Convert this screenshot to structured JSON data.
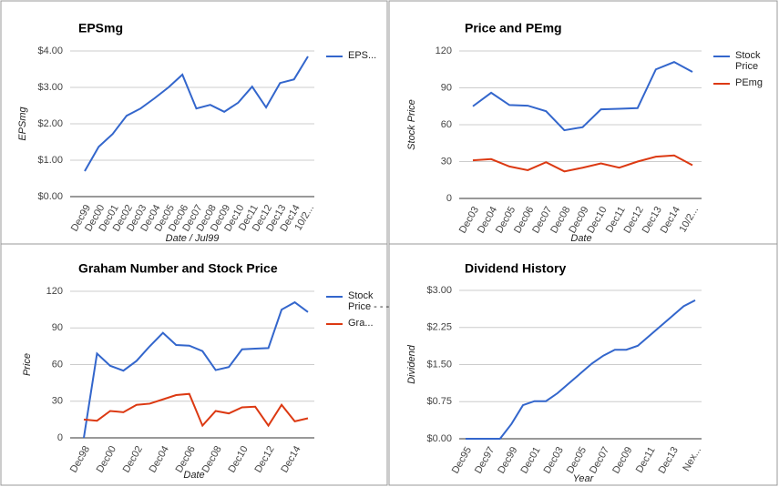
{
  "chart_data": [
    {
      "type": "line",
      "title": "EPSmg",
      "x_label": "Date / Jul99",
      "y_label": "EPSmg",
      "legend": "right",
      "grid": true,
      "categories": [
        "Dec99",
        "Dec00",
        "Dec01",
        "Dec02",
        "Dec03",
        "Dec04",
        "Dec05",
        "Dec06",
        "Dec07",
        "Dec08",
        "Dec09",
        "Dec10",
        "Dec11",
        "Dec12",
        "Dec13",
        "Dec14",
        "10/2..."
      ],
      "series": [
        {
          "name": "EPS...",
          "color": "#3366cc",
          "values": [
            0.7,
            1.37,
            1.72,
            2.22,
            2.42,
            2.7,
            3.0,
            3.35,
            2.42,
            2.52,
            2.33,
            2.58,
            3.02,
            2.45,
            3.12,
            3.22,
            3.85
          ]
        }
      ],
      "ylim": [
        0,
        4
      ],
      "yticks": [
        {
          "value": 0,
          "label": "$0.00"
        },
        {
          "value": 1,
          "label": "$1.00"
        },
        {
          "value": 2,
          "label": "$2.00"
        },
        {
          "value": 3,
          "label": "$3.00"
        },
        {
          "value": 4,
          "label": "$4.00"
        }
      ]
    },
    {
      "type": "line",
      "title": "Price and PEmg",
      "x_label": "Date",
      "y_label": "Stock Price",
      "legend": "right",
      "grid": true,
      "categories": [
        "Dec03",
        "Dec04",
        "Dec05",
        "Dec06",
        "Dec07",
        "Dec08",
        "Dec09",
        "Dec10",
        "Dec11",
        "Dec12",
        "Dec13",
        "Dec14",
        "10/2..."
      ],
      "series": [
        {
          "name": "Stock Price",
          "color": "#3366cc",
          "values": [
            75,
            86,
            76,
            75.5,
            71,
            55.5,
            58,
            72.5,
            73,
            73.5,
            105,
            111,
            103
          ]
        },
        {
          "name": "PEmg",
          "color": "#dc3912",
          "values": [
            31,
            32,
            26,
            23,
            29.5,
            22,
            25,
            28.5,
            25,
            30,
            34,
            35,
            27
          ]
        }
      ],
      "ylim": [
        0,
        120
      ],
      "yticks": [
        0,
        30,
        60,
        90,
        120
      ]
    },
    {
      "type": "line",
      "title": "Graham Number and Stock Price",
      "x_label": "Date",
      "y_label": "Price",
      "legend": "right",
      "grid": true,
      "categories": [
        "Dec98",
        null,
        "Dec00",
        null,
        "Dec02",
        null,
        "Dec04",
        null,
        "Dec06",
        null,
        "Dec08",
        null,
        "Dec10",
        null,
        "Dec12",
        null,
        "Dec14",
        null
      ],
      "series": [
        {
          "name": "Stock Price - - -",
          "color": "#3366cc",
          "values": [
            0,
            69,
            59,
            55,
            63,
            75,
            86,
            76,
            75.5,
            71,
            55.5,
            58,
            72.5,
            73,
            73.5,
            105,
            111,
            103
          ]
        },
        {
          "name": "Gra...",
          "color": "#dc3912",
          "values": [
            15,
            14,
            22,
            21,
            27,
            28,
            31.5,
            35,
            36,
            10,
            22,
            20,
            25,
            25.5,
            10,
            27,
            13.5,
            16
          ]
        }
      ],
      "ylim": [
        0,
        120
      ],
      "yticks": [
        0,
        30,
        60,
        90,
        120
      ]
    },
    {
      "type": "line",
      "title": "Dividend History",
      "x_label": "Year",
      "y_label": "Dividend",
      "grid": true,
      "categories": [
        "Dec95",
        null,
        "Dec97",
        null,
        "Dec99",
        null,
        "Dec01",
        null,
        "Dec03",
        null,
        "Dec05",
        null,
        "Dec07",
        null,
        "Dec09",
        null,
        "Dec11",
        null,
        "Dec13",
        null,
        "Nex..."
      ],
      "series": [
        {
          "name": "Dividend",
          "color": "#3366cc",
          "values": [
            0,
            0,
            0,
            0,
            0.3,
            0.68,
            0.76,
            0.76,
            0.92,
            1.12,
            1.32,
            1.52,
            1.68,
            1.8,
            1.8,
            1.88,
            2.08,
            2.28,
            2.48,
            2.68,
            2.8
          ]
        }
      ],
      "ylim": [
        0,
        3
      ],
      "yticks": [
        {
          "value": 0,
          "label": "$0.00"
        },
        {
          "value": 0.75,
          "label": "$0.75"
        },
        {
          "value": 1.5,
          "label": "$1.50"
        },
        {
          "value": 2.25,
          "label": "$2.25"
        },
        {
          "value": 3,
          "label": "$3.00"
        }
      ]
    }
  ]
}
